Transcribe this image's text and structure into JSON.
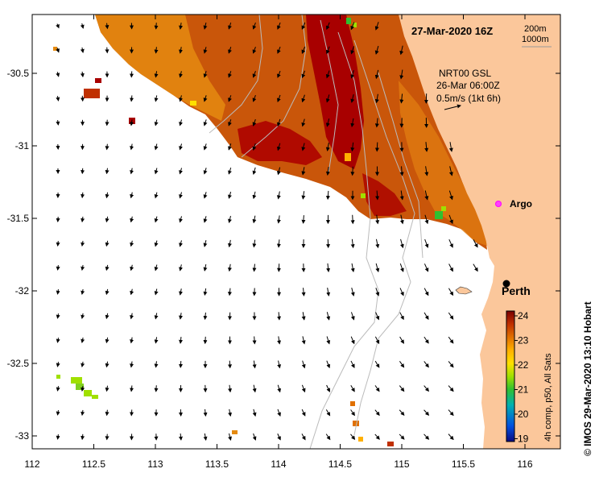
{
  "header": {
    "date": "27-Mar-2020 16Z",
    "depth_200": "200m",
    "depth_1000": "1000m"
  },
  "current_legend": {
    "line1": "NRT00 GSL",
    "line2": "26-Mar 06:00Z",
    "line3": "0.5m/s (1kt 6h)"
  },
  "places": {
    "argo": "Argo",
    "perth": "Perth"
  },
  "colorbar": {
    "ticks": [
      "24",
      "23",
      "22",
      "21",
      "20",
      "19"
    ],
    "caption": "4h comp, p50, All Sats",
    "range": [
      19,
      24
    ],
    "colors": [
      "#0a0a80",
      "#0050e0",
      "#00b0b0",
      "#30c030",
      "#a0e000",
      "#ffe000",
      "#ffb000",
      "#e07000",
      "#c03000",
      "#7a0000"
    ]
  },
  "credit": "© IMOS 29-Mar-2020 13:10 Hobart",
  "axes": {
    "x_ticks": [
      "112",
      "112.5",
      "113",
      "113.5",
      "114",
      "114.5",
      "115",
      "115.5",
      "116"
    ],
    "y_ticks": [
      "-30.5",
      "-31",
      "-31.5",
      "-32",
      "-32.5",
      "-33"
    ],
    "lon_range": [
      112,
      116.3
    ],
    "lat_range": [
      -33.1,
      -30.1
    ]
  },
  "colors": {
    "land": "#fbc79b",
    "sst_warm": "#c24a00",
    "sst_hot": "#a80000",
    "sst_mid": "#e58a10"
  },
  "markers": {
    "argo": {
      "lon": 115.85,
      "lat": -31.45
    },
    "perth": {
      "lon": 115.86,
      "lat": -31.95
    }
  }
}
